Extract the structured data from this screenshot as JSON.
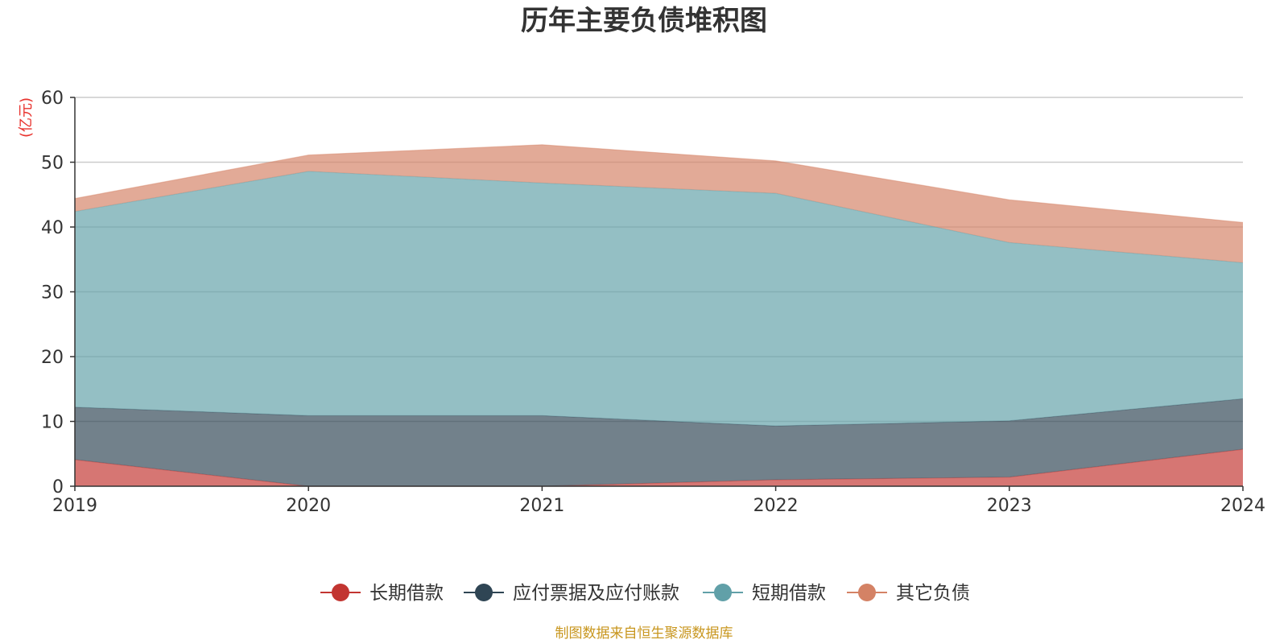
{
  "chart_data": {
    "type": "area",
    "stacked": true,
    "title": "历年主要负债堆积图",
    "unit_label": "(亿元)",
    "x": [
      "2019",
      "2020",
      "2021",
      "2022",
      "2023",
      "2024"
    ],
    "ylim": [
      0,
      60
    ],
    "yticks": [
      "0",
      "10",
      "20",
      "30",
      "40",
      "50",
      "60"
    ],
    "grid": true,
    "legend_position": "bottom",
    "series": [
      {
        "name": "长期借款",
        "color": "#c23531",
        "values": [
          4.1,
          0,
          0,
          1.0,
          1.4,
          5.7
        ]
      },
      {
        "name": "应付票据及应付账款",
        "color": "#2f4554",
        "values": [
          8.1,
          10.9,
          10.9,
          8.3,
          8.7,
          7.8
        ]
      },
      {
        "name": "短期借款",
        "color": "#61a0a8",
        "values": [
          30.2,
          37.7,
          35.9,
          35.9,
          27.5,
          21.0
        ]
      },
      {
        "name": "其它负债",
        "color": "#d48265",
        "values": [
          2.0,
          2.5,
          5.9,
          5.0,
          6.6,
          6.2
        ]
      }
    ],
    "source": "制图数据来自恒生聚源数据库"
  }
}
